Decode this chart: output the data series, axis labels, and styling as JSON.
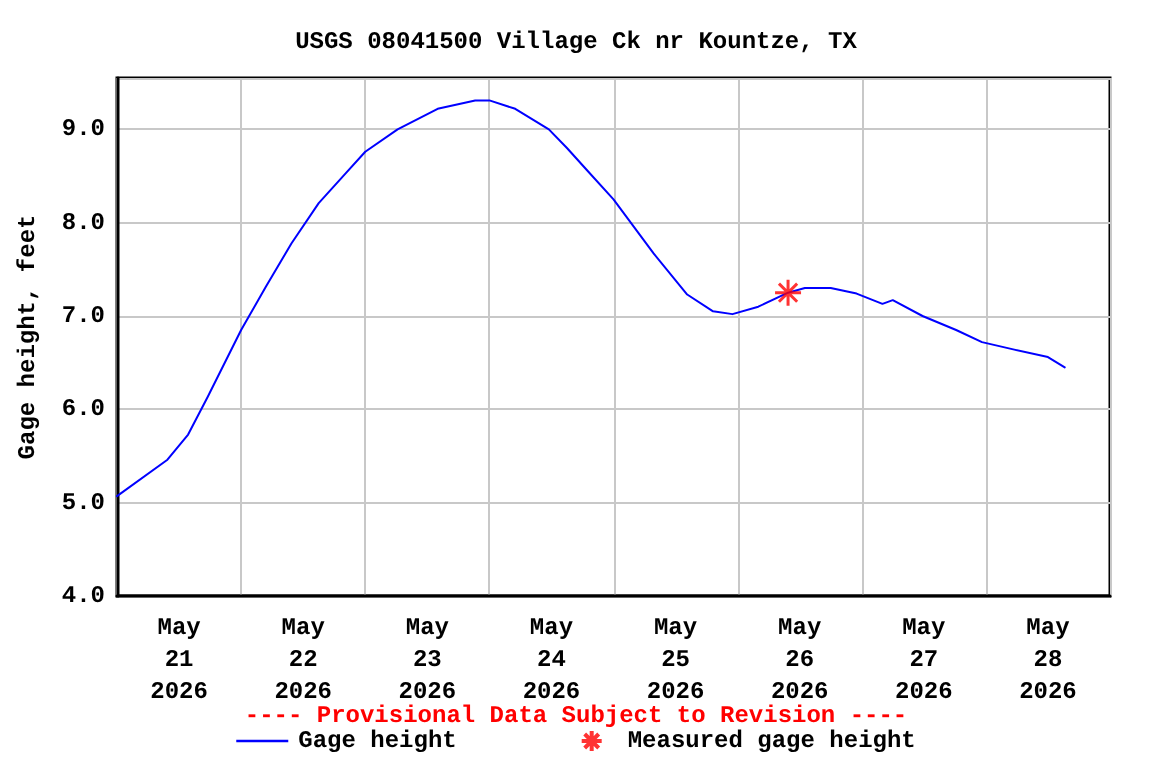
{
  "chart_data": {
    "type": "line",
    "title": "USGS 08041500 Village Ck nr Kountze, TX",
    "ylabel": "Gage height, feet",
    "annotations": [
      "---- Provisional Data Subject to Revision ----"
    ],
    "xlim": [
      "2026-05-21T00:00",
      "2026-05-29T00:00"
    ],
    "xticks": [
      {
        "value": "2026-05-21T00:00",
        "label": null
      },
      {
        "value": "2026-05-21T12:00",
        "label": "May\n21\n2026"
      },
      {
        "value": "2026-05-22T00:00",
        "label": null
      },
      {
        "value": "2026-05-22T12:00",
        "label": "May\n22\n2026"
      },
      {
        "value": "2026-05-23T00:00",
        "label": null
      },
      {
        "value": "2026-05-23T12:00",
        "label": "May\n23\n2026"
      },
      {
        "value": "2026-05-24T00:00",
        "label": null
      },
      {
        "value": "2026-05-24T12:00",
        "label": "May\n24\n2026"
      },
      {
        "value": "2026-05-25T00:00",
        "label": null
      },
      {
        "value": "2026-05-25T12:00",
        "label": "May\n25\n2026"
      },
      {
        "value": "2026-05-26T00:00",
        "label": null
      },
      {
        "value": "2026-05-26T12:00",
        "label": "May\n26\n2026"
      },
      {
        "value": "2026-05-27T00:00",
        "label": null
      },
      {
        "value": "2026-05-27T12:00",
        "label": "May\n27\n2026"
      },
      {
        "value": "2026-05-28T00:00",
        "label": null
      },
      {
        "value": "2026-05-28T12:00",
        "label": "May\n28\n2026"
      },
      {
        "value": "2026-05-29T00:00",
        "label": null
      }
    ],
    "ylim": [
      4,
      9.55
    ],
    "yticks": [
      {
        "value": 4,
        "label": "4.0"
      },
      {
        "value": 5,
        "label": "5.0"
      },
      {
        "value": 6,
        "label": "6.0"
      },
      {
        "value": 7,
        "label": "7.0"
      },
      {
        "value": 8,
        "label": "8.0"
      },
      {
        "value": 9,
        "label": "9.0"
      }
    ],
    "grid": true,
    "legend": "bottom",
    "series": [
      {
        "name": "Gage height",
        "color": "#0000ff",
        "marker": "none",
        "line_style": "solid",
        "x": [
          "2026-05-21T00:00",
          "2026-05-21T09:45",
          "2026-05-21T13:45",
          "2026-05-21T17:30",
          "2026-05-22T00:00",
          "2026-05-22T04:45",
          "2026-05-22T09:45",
          "2026-05-22T15:00",
          "2026-05-22T20:15",
          "2026-05-23T00:00",
          "2026-05-23T06:15",
          "2026-05-23T14:00",
          "2026-05-23T21:15",
          "2026-05-24T00:00",
          "2026-05-24T05:00",
          "2026-05-24T11:30",
          "2026-05-24T15:00",
          "2026-05-24T18:45",
          "2026-05-25T00:00",
          "2026-05-25T07:45",
          "2026-05-25T14:15",
          "2026-05-25T19:15",
          "2026-05-25T23:00",
          "2026-05-26T04:00",
          "2026-05-26T09:45",
          "2026-05-26T13:00",
          "2026-05-26T18:00",
          "2026-05-26T23:00",
          "2026-05-27T04:00",
          "2026-05-27T06:00",
          "2026-05-27T11:45",
          "2026-05-27T18:15",
          "2026-05-27T23:15",
          "2026-05-28T05:30",
          "2026-05-28T12:00",
          "2026-05-28T15:15"
        ],
        "values": [
          5.07,
          5.46,
          5.73,
          6.13,
          6.85,
          7.31,
          7.78,
          8.21,
          8.53,
          8.76,
          9.0,
          9.22,
          9.31,
          9.31,
          9.22,
          9.0,
          8.8,
          8.57,
          8.25,
          7.67,
          7.23,
          7.05,
          7.02,
          7.1,
          7.25,
          7.3,
          7.3,
          7.24,
          7.13,
          7.17,
          7.0,
          6.85,
          6.72,
          6.64,
          6.56,
          6.45
        ]
      },
      {
        "name": "Measured gage height",
        "type": "scatter",
        "color": "#ff0000",
        "marker": "cross",
        "x": [
          "2026-05-26T09:45"
        ],
        "values": [
          7.25
        ]
      }
    ]
  }
}
